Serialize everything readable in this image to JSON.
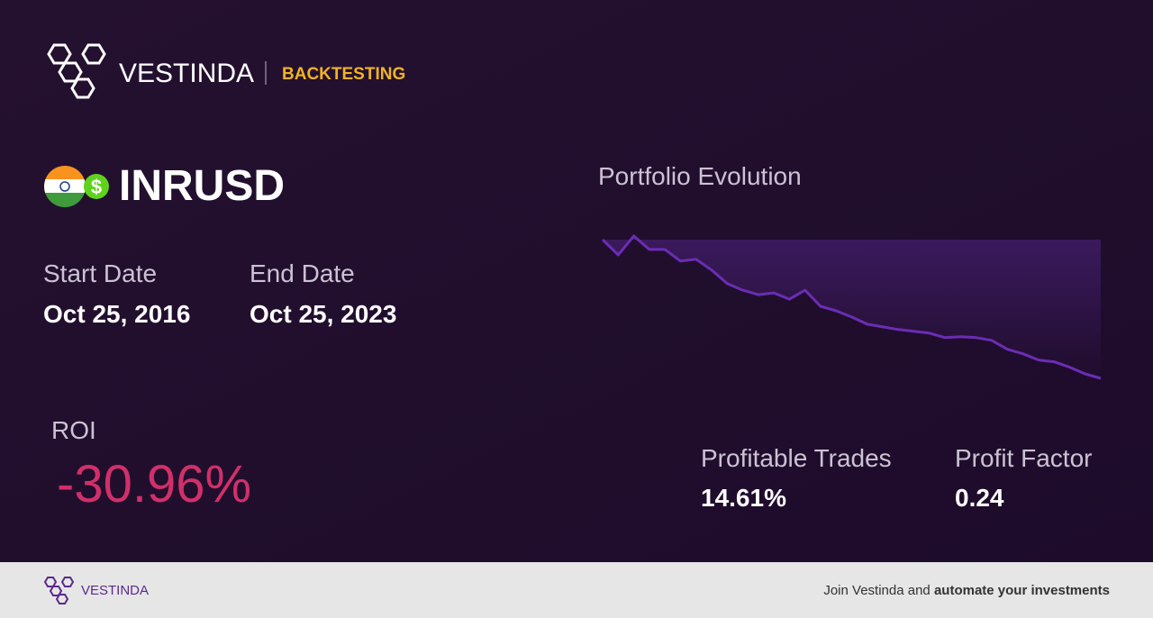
{
  "header": {
    "brand": "VESTINDA",
    "section": "BACKTESTING"
  },
  "asset": {
    "badge": "$",
    "symbol": "INRUSD"
  },
  "dates": [
    {
      "label": "Start Date",
      "value": "Oct 25, 2016"
    },
    {
      "label": "End Date",
      "value": "Oct 25, 2023"
    }
  ],
  "roi": {
    "label": "ROI",
    "value": "-30.96%"
  },
  "stats": [
    {
      "label": "Profitable Trades",
      "value": "14.61%"
    },
    {
      "label": "Profit Factor",
      "value": "0.24"
    }
  ],
  "chart_data": {
    "type": "line",
    "title": "Portfolio Evolution",
    "color": "#6a2db5",
    "values": [
      100,
      96.6,
      100.8,
      97.8,
      97.8,
      95.2,
      95.6,
      93.2,
      90.2,
      88.7,
      87.7,
      88.1,
      86.7,
      88.7,
      85.1,
      84.1,
      82.7,
      81.1,
      80.5,
      79.9,
      79.5,
      79.1,
      78.1,
      78.3,
      78.1,
      77.5,
      75.5,
      74.5,
      73.1,
      72.7,
      71.5,
      70.0,
      69.0
    ]
  },
  "footer": {
    "brand": "VESTINDA",
    "text": "Join Vestinda and ",
    "bold": "automate your investments"
  }
}
